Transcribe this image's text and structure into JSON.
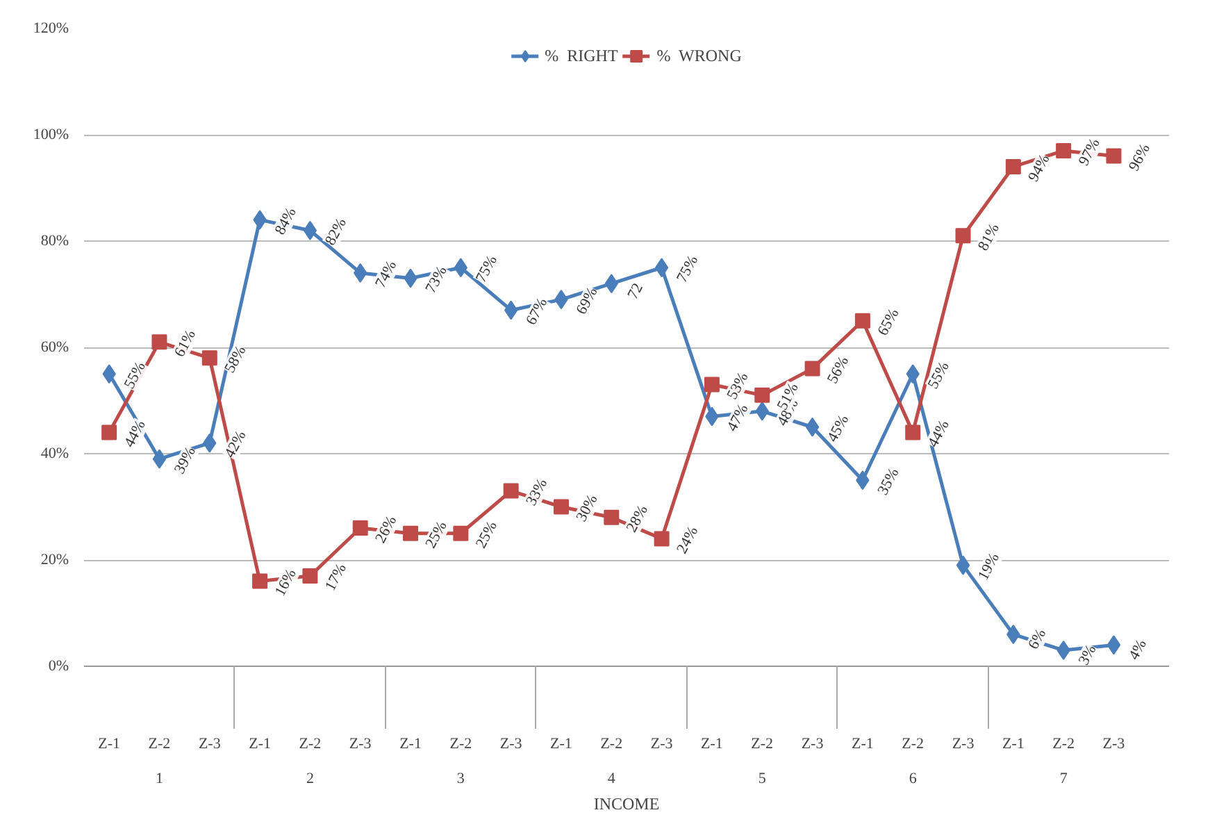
{
  "chart_data": {
    "type": "line",
    "xlabel": "INCOME",
    "categories": [
      "Z-1",
      "Z-2",
      "Z-3",
      "Z-1",
      "Z-2",
      "Z-3",
      "Z-1",
      "Z-2",
      "Z-3",
      "Z-1",
      "Z-2",
      "Z-3",
      "Z-1",
      "Z-2",
      "Z-3",
      "Z-1",
      "Z-2",
      "Z-3",
      "Z-1",
      "Z-2",
      "Z-3"
    ],
    "annotations": [
      "1",
      "2",
      "3",
      "4",
      "5",
      "6",
      "7"
    ],
    "series": [
      {
        "name": "%  RIGHT",
        "color": "#4a7ebb",
        "marker": "diamond",
        "values": [
          55,
          39,
          42,
          84,
          82,
          74,
          73,
          75,
          67,
          69,
          72,
          75,
          47,
          48,
          45,
          35,
          55,
          19,
          6,
          3,
          4
        ],
        "value_labels": [
          "55%",
          "39%",
          "42%",
          "84%",
          "82%",
          "74%",
          "73%",
          "75%",
          "67%",
          "69%",
          "72",
          "75%",
          "47%",
          "48%",
          "45%",
          "35%",
          "55%",
          "19%",
          "6%",
          "3%",
          "4%"
        ]
      },
      {
        "name": "%  WRONG",
        "color": "#be4b48",
        "marker": "square",
        "values": [
          44,
          61,
          58,
          16,
          17,
          26,
          25,
          25,
          33,
          30,
          28,
          24,
          53,
          51,
          56,
          65,
          44,
          81,
          94,
          97,
          96
        ],
        "value_labels": [
          "44%",
          "61%",
          "58%",
          "16%",
          "17%",
          "26%",
          "25%",
          "25%",
          "33%",
          "30%",
          "28%",
          "24%",
          "53%",
          "51%",
          "56%",
          "65%",
          "44%",
          "81%",
          "94%",
          "97%",
          "96%"
        ]
      }
    ],
    "ylim": [
      0,
      120
    ],
    "yticks": [
      {
        "value": 0,
        "label": "0%"
      },
      {
        "value": 20,
        "label": "20%"
      },
      {
        "value": 40,
        "label": "40%"
      },
      {
        "value": 60,
        "label": "60%"
      },
      {
        "value": 80,
        "label": "80%"
      },
      {
        "value": 100,
        "label": "100%"
      },
      {
        "value": 120,
        "label": "120%"
      }
    ],
    "grid": "y",
    "legend": "top"
  }
}
